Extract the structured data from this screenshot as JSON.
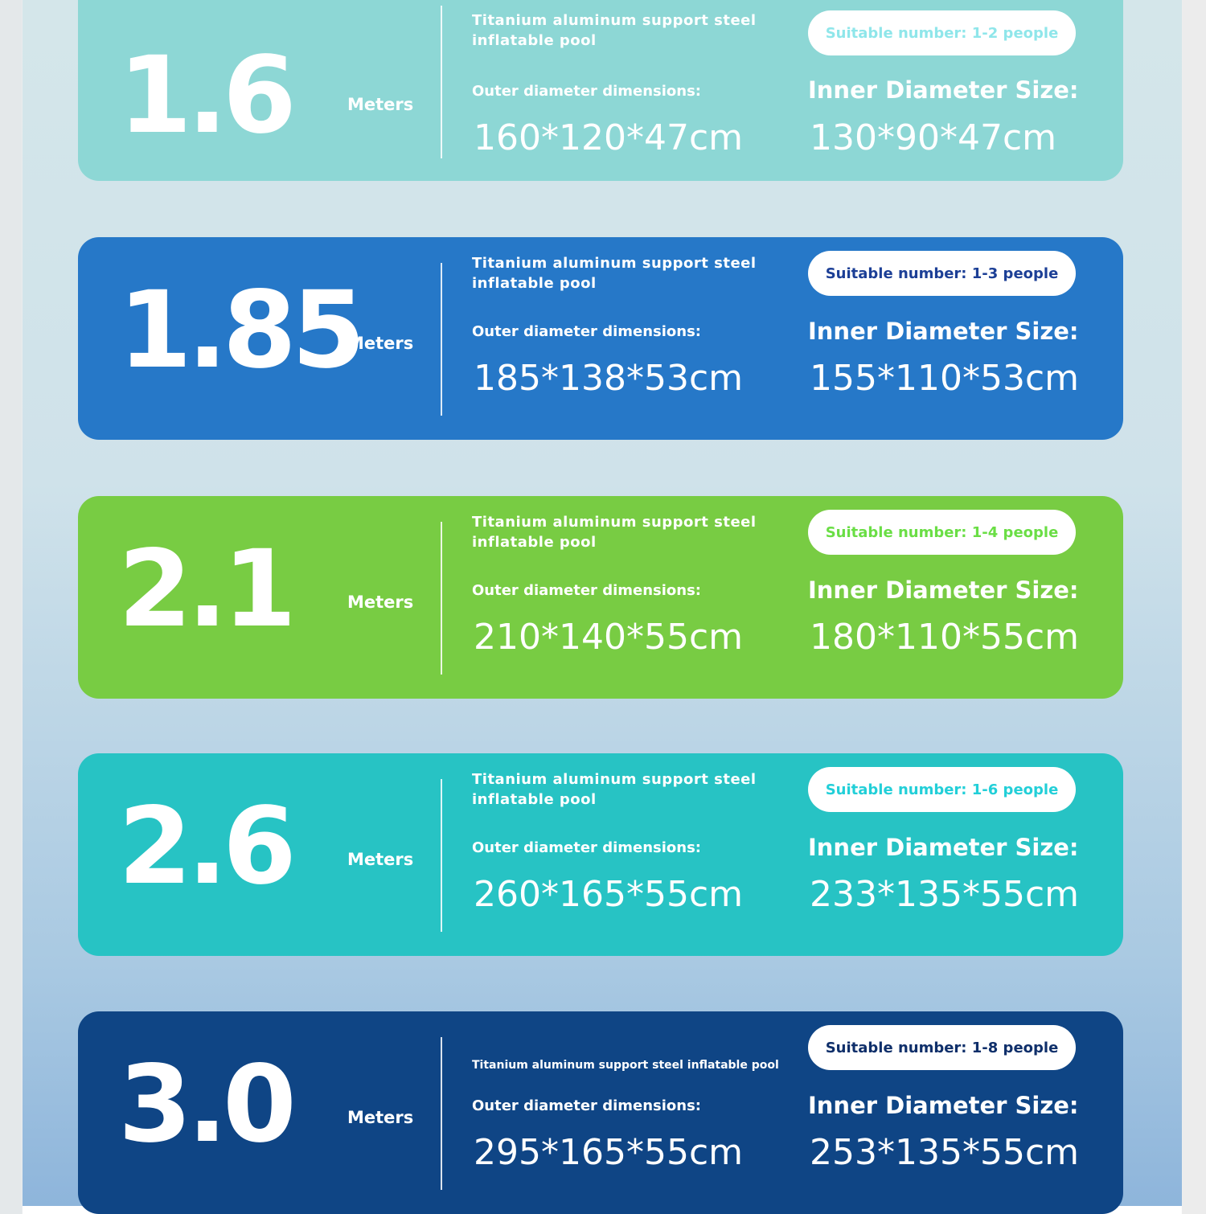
{
  "cards": [
    {
      "size": "1.6",
      "unit": "Meters",
      "description": "Titanium aluminum support steel inflatable pool",
      "capacity": "Suitable number: 1-2 people",
      "outer_label": "Outer diameter dimensions:",
      "outer_value": "160*120*47cm",
      "inner_label": "Inner Diameter Size:",
      "inner_value": "130*90*47cm",
      "color": "#8dd7d5",
      "pill_text_color": "#8fe6ea"
    },
    {
      "size": "1.85",
      "unit": "Meters",
      "description": "Titanium aluminum support steel inflatable pool",
      "capacity": "Suitable number: 1-3 people",
      "outer_label": "Outer diameter dimensions:",
      "outer_value": "185*138*53cm",
      "inner_label": "Inner Diameter Size:",
      "inner_value": "155*110*53cm",
      "color": "#2678c8",
      "pill_text_color": "#1c3f96"
    },
    {
      "size": "2.1",
      "unit": "Meters",
      "description": "Titanium aluminum support steel inflatable pool",
      "capacity": "Suitable number: 1-4 people",
      "outer_label": "Outer diameter dimensions:",
      "outer_value": "210*140*55cm",
      "inner_label": "Inner Diameter Size:",
      "inner_value": "180*110*55cm",
      "color": "#78cc43",
      "pill_text_color": "#6ade45"
    },
    {
      "size": "2.6",
      "unit": "Meters",
      "description": "Titanium aluminum support steel inflatable pool",
      "capacity": "Suitable number: 1-6 people",
      "outer_label": "Outer diameter dimensions:",
      "outer_value": "260*165*55cm",
      "inner_label": "Inner Diameter Size:",
      "inner_value": "233*135*55cm",
      "color": "#27c3c4",
      "pill_text_color": "#22cfd8"
    },
    {
      "size": "3.0",
      "unit": "Meters",
      "description": "Titanium aluminum support steel inflatable pool",
      "capacity": "Suitable number: 1-8 people",
      "outer_label": "Outer diameter dimensions:",
      "outer_value": "295*165*55cm",
      "inner_label": "Inner Diameter Size:",
      "inner_value": "253*135*55cm",
      "color": "#0f4585",
      "pill_text_color": "#0f2f6a"
    }
  ]
}
